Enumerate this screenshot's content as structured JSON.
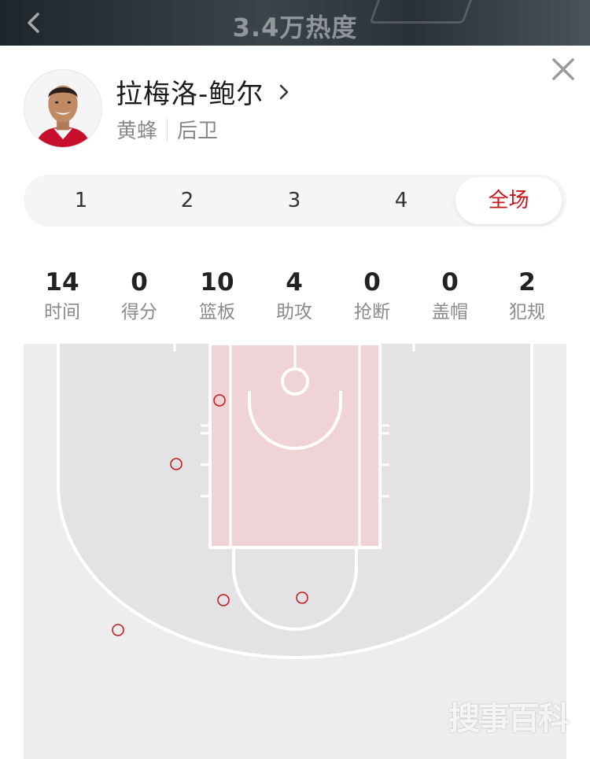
{
  "header": {
    "heat_text": "3.4万热度",
    "back_icon": "chevron-left-icon"
  },
  "player": {
    "name": "拉梅洛-鲍尔",
    "team": "黄蜂",
    "position": "后卫",
    "profile_icon": "chevron-right-icon",
    "close_icon": "close-icon"
  },
  "periods": {
    "tabs": [
      "1",
      "2",
      "3",
      "4",
      "全场"
    ],
    "active": "全场",
    "active_color": "#c4161c"
  },
  "stats": [
    {
      "value": "14",
      "label": "时间"
    },
    {
      "value": "0",
      "label": "得分"
    },
    {
      "value": "10",
      "label": "篮板"
    },
    {
      "value": "4",
      "label": "助攻"
    },
    {
      "value": "0",
      "label": "抢断"
    },
    {
      "value": "0",
      "label": "盖帽"
    },
    {
      "value": "2",
      "label": "犯规"
    }
  ],
  "court": {
    "paint_color": "#f0d3d6",
    "floor_color": "#e3e3e5",
    "marker_color": "#c4161c",
    "shot_markers": 5
  },
  "watermark": "搜事百科"
}
